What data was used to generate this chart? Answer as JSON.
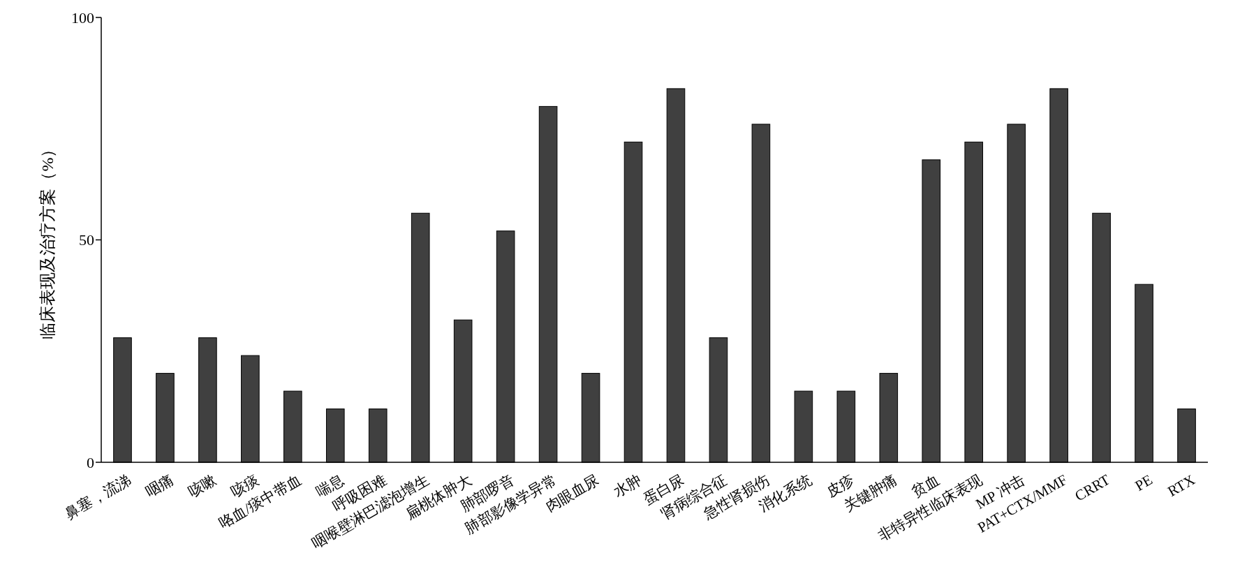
{
  "chart_data": {
    "type": "bar",
    "ylabel": "临床表现及治疗方案（%）",
    "categories": [
      "鼻塞，流涕",
      "咽痛",
      "咳嗽",
      "咳痰",
      "咯血/痰中带血",
      "喘息",
      "呼吸困难",
      "咽喉壁淋巴滤泡增生",
      "扁桃体肿大",
      "肺部啰音",
      "肺部影像学异常",
      "肉眼血尿",
      "水肿",
      "蛋白尿",
      "肾病综合征",
      "急性肾损伤",
      "消化系统",
      "皮疹",
      "关键肿痛",
      "贫血",
      "非特异性临床表现",
      "MP 冲击",
      "PAT+CTX/MMF",
      "CRRT",
      "PE",
      "RTX"
    ],
    "values": [
      28,
      20,
      28,
      24,
      16,
      12,
      12,
      56,
      32,
      52,
      80,
      20,
      72,
      84,
      28,
      76,
      16,
      16,
      20,
      68,
      72,
      76,
      84,
      56,
      40,
      12
    ],
    "color": "#404040",
    "ylim": [
      0,
      100
    ],
    "yticks": [
      0,
      50,
      100
    ]
  }
}
